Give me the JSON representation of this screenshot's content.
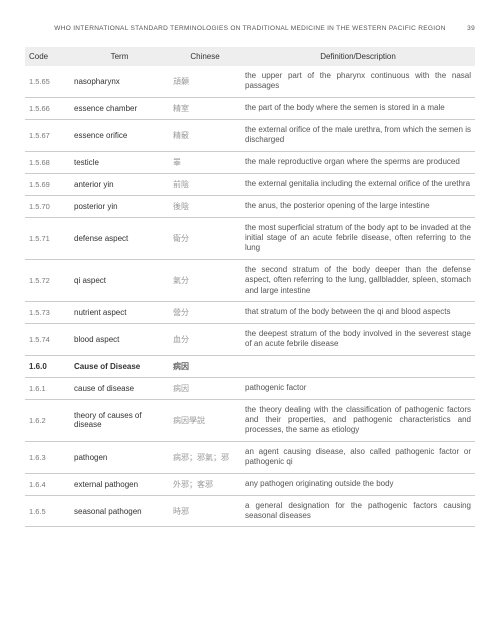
{
  "header": {
    "title": "WHO INTERNATIONAL STANDARD TERMINOLOGIES ON TRADITIONAL MEDICINE IN THE WESTERN PACIFIC REGION",
    "page": "39"
  },
  "table": {
    "columns": [
      "Code",
      "Term",
      "Chinese",
      "Definition/Description"
    ],
    "rows": [
      {
        "code": "1.5.65",
        "term": "nasopharynx",
        "chinese": "頏顙",
        "def": "the upper part of the pharynx continuous with the nasal passages",
        "section": false
      },
      {
        "code": "1.5.66",
        "term": "essence chamber",
        "chinese": "精室",
        "def": "the part of the body where the semen is stored in a male",
        "section": false
      },
      {
        "code": "1.5.67",
        "term": "essence orifice",
        "chinese": "精竅",
        "def": "the external orifice of the male urethra, from which the semen is discharged",
        "section": false
      },
      {
        "code": "1.5.68",
        "term": "testicle",
        "chinese": "睪",
        "def": "the male reproductive organ where the sperms are produced",
        "section": false
      },
      {
        "code": "1.5.69",
        "term": "anterior yin",
        "chinese": "前陰",
        "def": "the external genitalia including the external orifice of the urethra",
        "section": false
      },
      {
        "code": "1.5.70",
        "term": "posterior yin",
        "chinese": "後陰",
        "def": "the anus, the posterior opening of the large intestine",
        "section": false
      },
      {
        "code": "1.5.71",
        "term": "defense aspect",
        "chinese": "衛分",
        "def": "the most superficial stratum of the body apt to be invaded at the initial stage of an acute febrile disease, often referring to the lung",
        "section": false
      },
      {
        "code": "1.5.72",
        "term": "qi aspect",
        "chinese": "氣分",
        "def": "the second stratum of the body deeper than the defense aspect, often referring to the lung, gallbladder, spleen, stomach and large intestine",
        "section": false
      },
      {
        "code": "1.5.73",
        "term": "nutrient aspect",
        "chinese": "營分",
        "def": "that stratum of the body between the qi and blood aspects",
        "section": false
      },
      {
        "code": "1.5.74",
        "term": "blood aspect",
        "chinese": "血分",
        "def": " the deepest stratum of the body involved in the severest stage of an acute febrile disease",
        "section": false
      },
      {
        "code": "1.6.0",
        "term": "Cause of Disease",
        "chinese": "病因",
        "def": "",
        "section": true
      },
      {
        "code": "1.6.1",
        "term": "cause of disease",
        "chinese": "病因",
        "def": "pathogenic factor",
        "section": false
      },
      {
        "code": "1.6.2",
        "term": "theory of causes of disease",
        "chinese": "病因學說",
        "def": "the theory dealing with the classification of pathogenic factors and their properties, and pathogenic characteristics and processes, the same as etiology",
        "section": false
      },
      {
        "code": "1.6.3",
        "term": "pathogen",
        "chinese": "病邪；邪氣；邪",
        "def": "an agent causing disease, also called pathogenic factor or pathogenic qi",
        "section": false
      },
      {
        "code": "1.6.4",
        "term": "external pathogen",
        "chinese": "外邪；客邪",
        "def": "any pathogen originating outside the body",
        "section": false
      },
      {
        "code": "1.6.5",
        "term": "seasonal pathogen",
        "chinese": "時邪",
        "def": "a general designation for the pathogenic factors causing seasonal diseases",
        "section": false
      }
    ]
  }
}
